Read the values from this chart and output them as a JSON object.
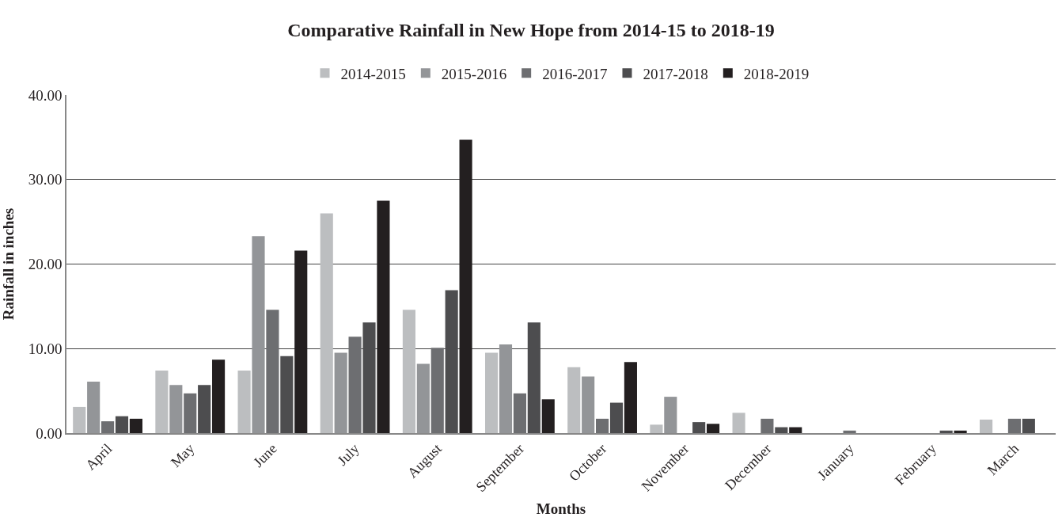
{
  "chart_data": {
    "type": "bar",
    "title": "Comparative Rainfall in New Hope from 2014-15 to 2018-19",
    "xlabel": "Months",
    "ylabel": "Rainfall in inches",
    "categories": [
      "April",
      "May",
      "June",
      "July",
      "August",
      "September",
      "October",
      "November",
      "December",
      "January",
      "February",
      "March"
    ],
    "series": [
      {
        "name": "2014-2015",
        "color": "#bcbec0",
        "values": [
          3.1,
          7.4,
          7.4,
          26.0,
          14.6,
          9.5,
          7.8,
          1.0,
          2.4,
          null,
          null,
          1.6
        ]
      },
      {
        "name": "2015-2016",
        "color": "#939598",
        "values": [
          6.1,
          5.7,
          23.3,
          9.5,
          8.2,
          10.5,
          6.7,
          4.3,
          null,
          null,
          null,
          null
        ]
      },
      {
        "name": "2016-2017",
        "color": "#6d6e71",
        "values": [
          1.4,
          4.7,
          14.6,
          11.4,
          10.1,
          4.7,
          1.7,
          null,
          1.7,
          0.3,
          null,
          1.7
        ]
      },
      {
        "name": "2017-2018",
        "color": "#4d4d4f",
        "values": [
          2.0,
          5.7,
          9.1,
          13.1,
          16.9,
          13.1,
          3.6,
          1.3,
          0.7,
          null,
          0.3,
          1.7
        ]
      },
      {
        "name": "2018-2019",
        "color": "#231f20",
        "values": [
          1.7,
          8.7,
          21.6,
          27.5,
          34.7,
          4.0,
          8.4,
          1.1,
          0.7,
          null,
          0.3,
          null
        ]
      }
    ],
    "ylim": [
      0,
      40
    ],
    "yticks": [
      {
        "value": 0,
        "label": "0.00"
      },
      {
        "value": 10,
        "label": "10.00"
      },
      {
        "value": 20,
        "label": "20.00"
      },
      {
        "value": 30,
        "label": "30.00"
      },
      {
        "value": 40,
        "label": "40.00"
      }
    ],
    "grid": "y",
    "legend": "top"
  }
}
